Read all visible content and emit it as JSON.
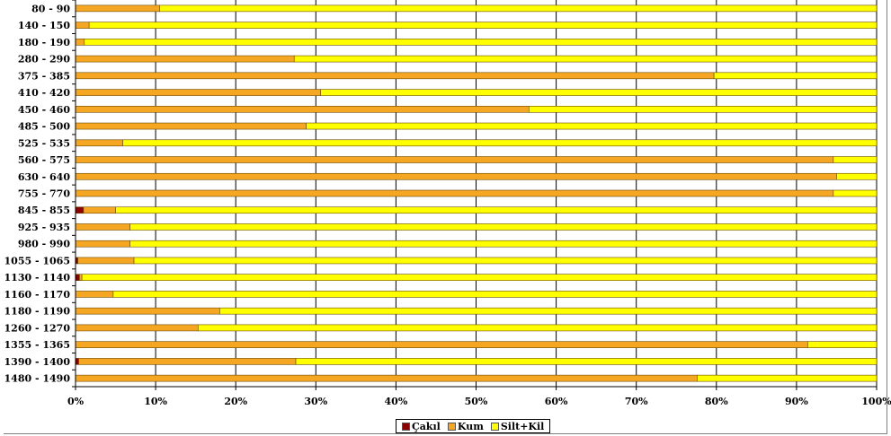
{
  "chart_data": {
    "type": "bar",
    "orientation": "horizontal",
    "stacking": "percent",
    "title": "",
    "xlabel": "",
    "ylabel": "",
    "xlim": [
      0,
      100
    ],
    "x_ticks": [
      "0%",
      "10%",
      "20%",
      "30%",
      "40%",
      "50%",
      "60%",
      "70%",
      "80%",
      "90%",
      "100%"
    ],
    "grid": "vertical",
    "legend_position": "bottom",
    "categories": [
      "80 - 90",
      "140 - 150",
      "180 - 190",
      "280 - 290",
      "375 - 385",
      "410 - 420",
      "450 - 460",
      "485 - 500",
      "525 - 535",
      "560 - 575",
      "630 - 640",
      "755 - 770",
      "845 - 855",
      "925 - 935",
      "980 - 990",
      "1055 - 1065",
      "1130 - 1140",
      "1160 - 1170",
      "1180 - 1190",
      "1260 - 1270",
      "1355 - 1365",
      "1390 - 1400",
      "1480 - 1490"
    ],
    "series": [
      {
        "name": "Çakıl",
        "color": "#8B0000",
        "values": [
          0,
          0,
          0,
          0,
          0,
          0,
          0,
          0,
          0,
          0,
          0,
          0,
          1.0,
          0,
          0,
          0.3,
          0.5,
          0,
          0,
          0,
          0,
          0.4,
          0
        ]
      },
      {
        "name": "Kum",
        "color": "#F5A623",
        "values": [
          10.5,
          1.7,
          1.1,
          27.3,
          79.7,
          30.6,
          56.6,
          28.8,
          5.9,
          94.6,
          95.0,
          94.6,
          4.0,
          6.8,
          6.8,
          7.0,
          0.3,
          4.7,
          18.0,
          15.3,
          91.4,
          27.1,
          77.6
        ]
      },
      {
        "name": "Silt+Kil",
        "color": "#FFFF00",
        "values": [
          89.5,
          98.3,
          98.9,
          72.7,
          20.3,
          69.4,
          43.4,
          71.2,
          94.1,
          5.4,
          5.0,
          5.4,
          95.0,
          93.2,
          93.2,
          92.7,
          99.2,
          95.3,
          82.0,
          84.7,
          8.6,
          72.5,
          22.4
        ]
      }
    ]
  }
}
